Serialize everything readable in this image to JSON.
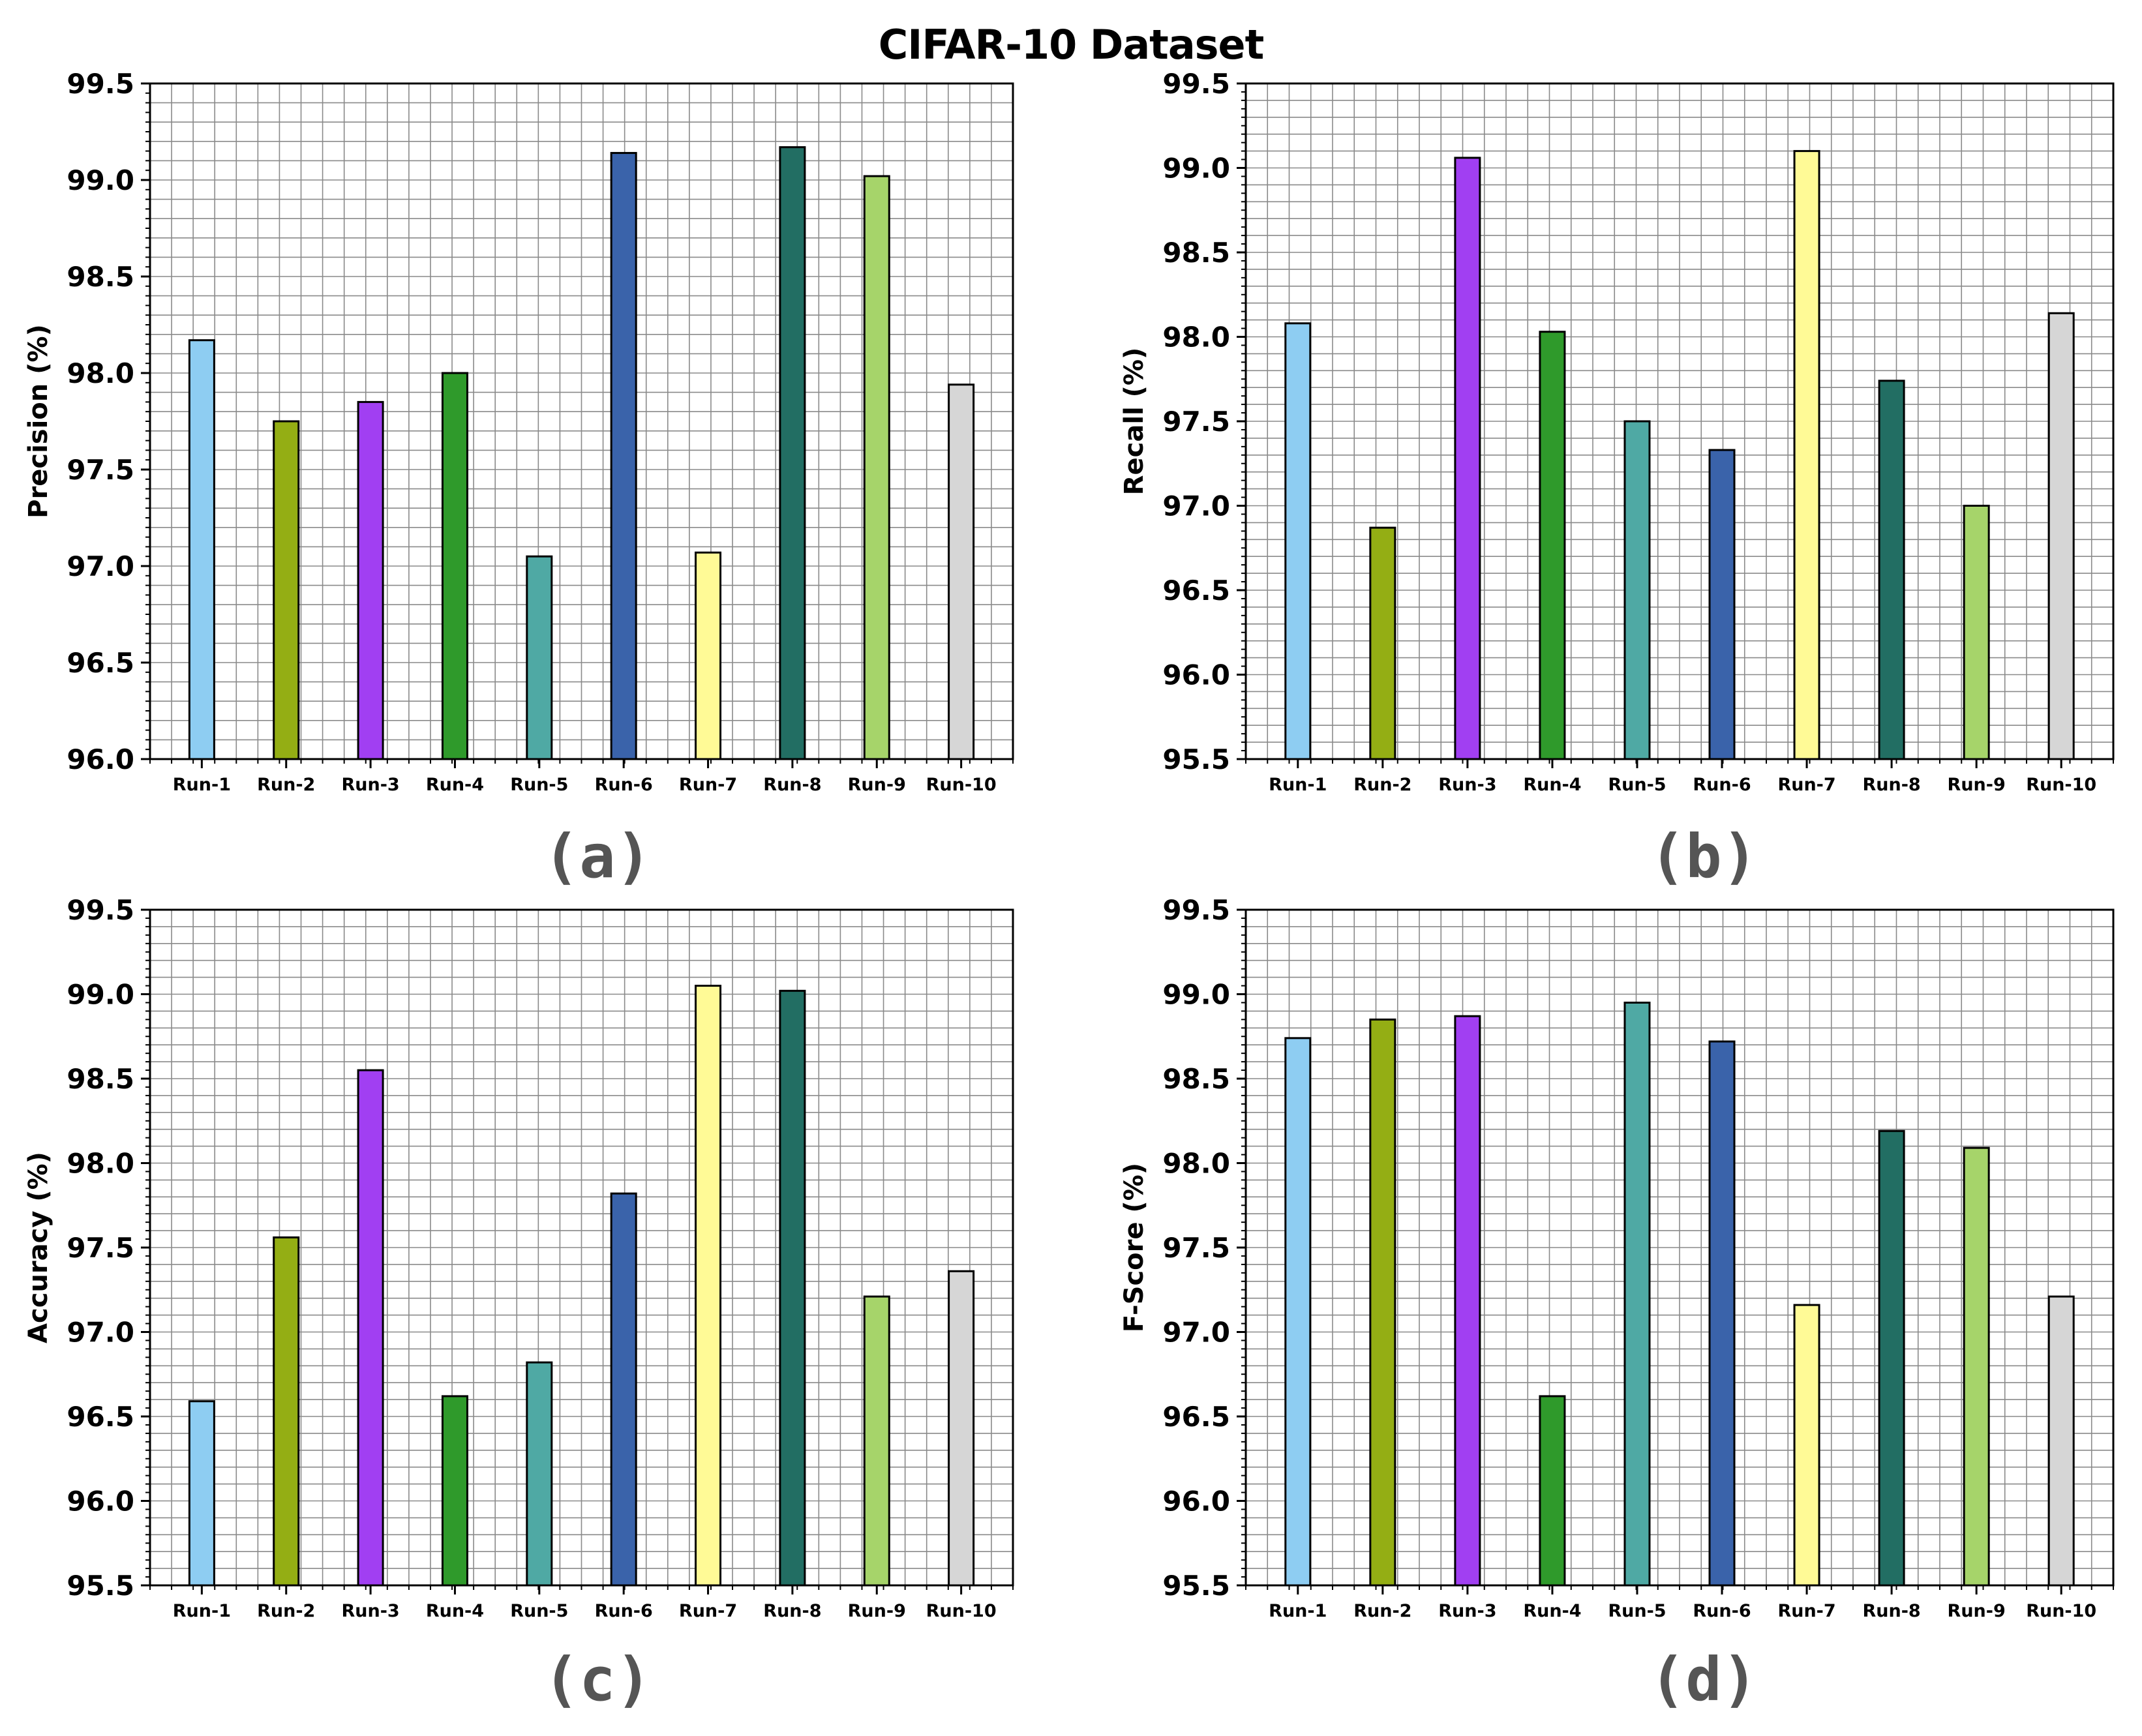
{
  "figure": {
    "title": "CIFAR-10 Dataset"
  },
  "colors": {
    "Run-1": "#8ecdf2",
    "Run-2": "#94ae14",
    "Run-3": "#a13ff2",
    "Run-4": "#2f9a2b",
    "Run-5": "#4fa9a4",
    "Run-6": "#3a63aa",
    "Run-7": "#fffa96",
    "Run-8": "#226e63",
    "Run-9": "#a6d46a",
    "Run-10": "#d6d6d6"
  },
  "chart_data": [
    {
      "type": "bar",
      "panel": "(a)",
      "title": "",
      "xlabel": "",
      "ylabel": "Precision (%)",
      "ylim": [
        96.0,
        99.5
      ],
      "yticks": [
        "96.0",
        "96.5",
        "97.0",
        "97.5",
        "98.0",
        "98.5",
        "99.0",
        "99.5"
      ],
      "categories": [
        "Run-1",
        "Run-2",
        "Run-3",
        "Run-4",
        "Run-5",
        "Run-6",
        "Run-7",
        "Run-8",
        "Run-9",
        "Run-10"
      ],
      "values": [
        98.17,
        97.75,
        97.85,
        98.0,
        97.05,
        99.14,
        97.07,
        99.17,
        99.02,
        97.94
      ],
      "grid": true
    },
    {
      "type": "bar",
      "panel": "(b)",
      "title": "",
      "xlabel": "",
      "ylabel": "Recall (%)",
      "ylim": [
        95.5,
        99.5
      ],
      "yticks": [
        "95.5",
        "96.0",
        "96.5",
        "97.0",
        "97.5",
        "98.0",
        "98.5",
        "99.0",
        "99.5"
      ],
      "categories": [
        "Run-1",
        "Run-2",
        "Run-3",
        "Run-4",
        "Run-5",
        "Run-6",
        "Run-7",
        "Run-8",
        "Run-9",
        "Run-10"
      ],
      "values": [
        98.08,
        96.87,
        99.06,
        98.03,
        97.5,
        97.33,
        99.1,
        97.74,
        97.0,
        98.14
      ],
      "grid": true
    },
    {
      "type": "bar",
      "panel": "(c)",
      "title": "",
      "xlabel": "",
      "ylabel": "Accuracy (%)",
      "ylim": [
        95.5,
        99.5
      ],
      "yticks": [
        "95.5",
        "96.0",
        "96.5",
        "97.0",
        "97.5",
        "98.0",
        "98.5",
        "99.0",
        "99.5"
      ],
      "categories": [
        "Run-1",
        "Run-2",
        "Run-3",
        "Run-4",
        "Run-5",
        "Run-6",
        "Run-7",
        "Run-8",
        "Run-9",
        "Run-10"
      ],
      "values": [
        96.59,
        97.56,
        98.55,
        96.62,
        96.82,
        97.82,
        99.05,
        99.02,
        97.21,
        97.36
      ],
      "grid": true
    },
    {
      "type": "bar",
      "panel": "(d)",
      "title": "",
      "xlabel": "",
      "ylabel": "F-Score (%)",
      "ylim": [
        95.5,
        99.5
      ],
      "yticks": [
        "95.5",
        "96.0",
        "96.5",
        "97.0",
        "97.5",
        "98.0",
        "98.5",
        "99.0",
        "99.5"
      ],
      "categories": [
        "Run-1",
        "Run-2",
        "Run-3",
        "Run-4",
        "Run-5",
        "Run-6",
        "Run-7",
        "Run-8",
        "Run-9",
        "Run-10"
      ],
      "values": [
        98.74,
        98.85,
        98.87,
        96.62,
        98.95,
        98.72,
        97.16,
        98.19,
        98.09,
        97.21
      ],
      "grid": true
    }
  ]
}
